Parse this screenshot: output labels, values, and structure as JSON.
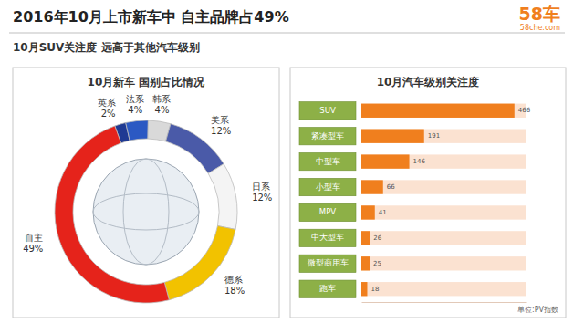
{
  "header": {
    "title": "2016年10月上市新车中 自主品牌占49%",
    "subtitle": "10月SUV关注度 远高于其他汽车级别",
    "logo": "58车",
    "site": "58che.com"
  },
  "chart_data": [
    {
      "type": "pie",
      "title": "10月新车 国别占比情况",
      "categories": [
        "英系",
        "法系",
        "韩系",
        "美系",
        "日系",
        "德系",
        "自主"
      ],
      "values": [
        2,
        4,
        4,
        12,
        12,
        18,
        49
      ],
      "value_labels": [
        "2%",
        "4%",
        "4%",
        "12%",
        "12%",
        "18%",
        "49%"
      ],
      "colors": [
        "#1f3a93",
        "#2b59c3",
        "#d9d9d9",
        "#4a5aa8",
        "#f4f4f4",
        "#f2c200",
        "#e5231b"
      ],
      "data_labels": true
    },
    {
      "type": "bar",
      "orientation": "horizontal",
      "title": "10月汽车级别关注度",
      "categories": [
        "SUV",
        "紧凑型车",
        "中型车",
        "小型车",
        "MPV",
        "中大型车",
        "微型商用车",
        "跑车"
      ],
      "values": [
        466,
        191,
        146,
        66,
        41,
        26,
        25,
        18
      ],
      "color": "#f07f1e",
      "xlim": [
        0,
        500
      ],
      "tick_labels": false,
      "data_labels": true,
      "annotations": [
        "单位:PV指数"
      ]
    }
  ]
}
